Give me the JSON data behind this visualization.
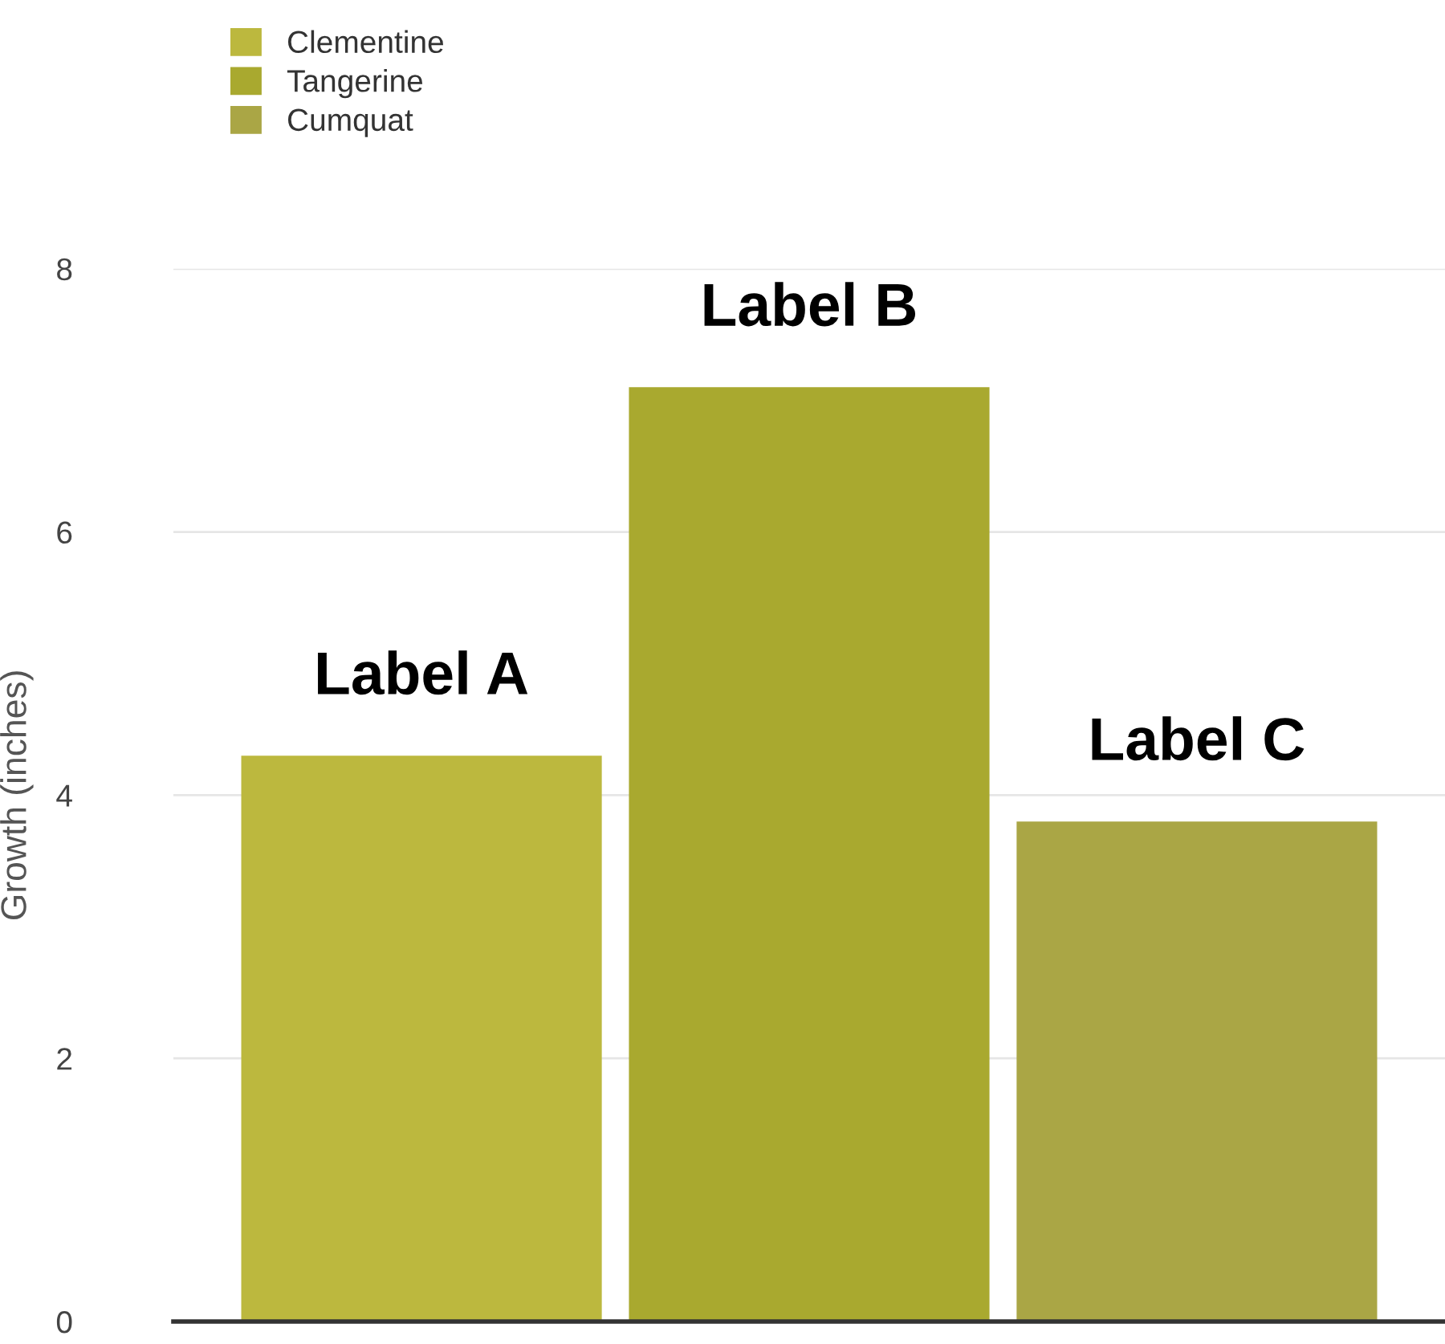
{
  "chart_data": {
    "type": "bar",
    "ylabel": "Growth (inches)",
    "categories": [
      "Label A",
      "Label B",
      "Label C"
    ],
    "series": [
      {
        "name": "Clementine",
        "color": "#bcb83e",
        "values": [
          4.3,
          null,
          null
        ]
      },
      {
        "name": "Tangerine",
        "color": "#a9a92f",
        "values": [
          null,
          7.1,
          null
        ]
      },
      {
        "name": "Cumquat",
        "color": "#aaa645",
        "values": [
          null,
          null,
          3.8
        ]
      }
    ],
    "ylim": [
      0,
      8
    ],
    "yticks": [
      0,
      2,
      4,
      6,
      8
    ],
    "grid": "y",
    "legend": "top left"
  }
}
